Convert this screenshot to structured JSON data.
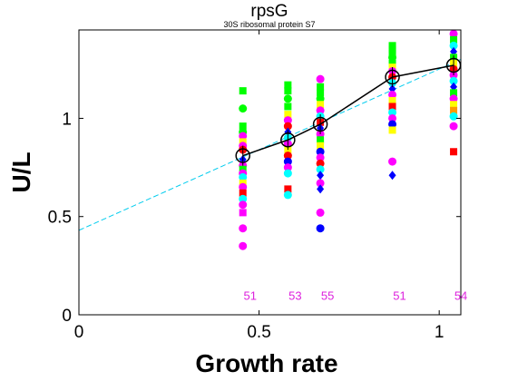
{
  "chart_data": {
    "type": "scatter",
    "title": "rpsG",
    "subtitle": "30S ribosomal protein S7",
    "xlabel": "Growth rate",
    "ylabel": "U/L",
    "xlim": [
      0,
      1.06
    ],
    "ylim": [
      0,
      1.45
    ],
    "xticks": [
      0,
      0.5,
      1
    ],
    "xtick_labels": [
      "0",
      "0.5",
      "1"
    ],
    "yticks": [
      0,
      0.5,
      1
    ],
    "ytick_labels": [
      "0",
      "0.5",
      "1"
    ],
    "grid": false,
    "counts": {
      "x": [
        0.455,
        0.58,
        0.67,
        0.87,
        1.04
      ],
      "labels": [
        "51",
        "53",
        "55",
        "51",
        "54"
      ],
      "y": 0.1,
      "color": "#dd22dd"
    },
    "mean_line": {
      "color": "#000000",
      "x": [
        0.455,
        0.58,
        0.67,
        0.87,
        1.04
      ],
      "y": [
        0.81,
        0.89,
        0.97,
        1.21,
        1.27
      ]
    },
    "fit_line": {
      "color": "#00ccee",
      "style": "dashed",
      "x": [
        0,
        1.06
      ],
      "y": [
        0.43,
        1.3
      ]
    },
    "points": [
      {
        "x": 0.455,
        "y": 1.14,
        "c": "#00ff00",
        "m": "s"
      },
      {
        "x": 0.455,
        "y": 1.05,
        "c": "#00ff00",
        "m": "o"
      },
      {
        "x": 0.455,
        "y": 0.96,
        "c": "#00ff00",
        "m": "s"
      },
      {
        "x": 0.455,
        "y": 0.93,
        "c": "#00ff00",
        "m": "o"
      },
      {
        "x": 0.455,
        "y": 0.91,
        "c": "#ff00ff",
        "m": "o"
      },
      {
        "x": 0.455,
        "y": 0.88,
        "c": "#ffff00",
        "m": "s"
      },
      {
        "x": 0.455,
        "y": 0.86,
        "c": "#ff00ff",
        "m": "o"
      },
      {
        "x": 0.455,
        "y": 0.84,
        "c": "#ff0000",
        "m": "o"
      },
      {
        "x": 0.455,
        "y": 0.79,
        "c": "#0000ff",
        "m": "d"
      },
      {
        "x": 0.455,
        "y": 0.76,
        "c": "#ff00ff",
        "m": "o"
      },
      {
        "x": 0.455,
        "y": 0.74,
        "c": "#00ff00",
        "m": "s"
      },
      {
        "x": 0.455,
        "y": 0.72,
        "c": "#ff00ff",
        "m": "o"
      },
      {
        "x": 0.455,
        "y": 0.7,
        "c": "#00ffff",
        "m": "o"
      },
      {
        "x": 0.455,
        "y": 0.67,
        "c": "#ffff00",
        "m": "s"
      },
      {
        "x": 0.455,
        "y": 0.65,
        "c": "#ff00ff",
        "m": "o"
      },
      {
        "x": 0.455,
        "y": 0.62,
        "c": "#ff0000",
        "m": "s"
      },
      {
        "x": 0.455,
        "y": 0.59,
        "c": "#00ffff",
        "m": "o"
      },
      {
        "x": 0.455,
        "y": 0.56,
        "c": "#ff00ff",
        "m": "o"
      },
      {
        "x": 0.455,
        "y": 0.52,
        "c": "#ff00ff",
        "m": "s"
      },
      {
        "x": 0.455,
        "y": 0.44,
        "c": "#ff00ff",
        "m": "o"
      },
      {
        "x": 0.455,
        "y": 0.35,
        "c": "#ff00ff",
        "m": "o"
      },
      {
        "x": 0.58,
        "y": 1.17,
        "c": "#00ff00",
        "m": "s"
      },
      {
        "x": 0.58,
        "y": 1.14,
        "c": "#00ff00",
        "m": "s"
      },
      {
        "x": 0.58,
        "y": 1.1,
        "c": "#00ff00",
        "m": "o"
      },
      {
        "x": 0.58,
        "y": 1.06,
        "c": "#00ff00",
        "m": "s"
      },
      {
        "x": 0.58,
        "y": 1.02,
        "c": "#ffff00",
        "m": "s"
      },
      {
        "x": 0.58,
        "y": 0.99,
        "c": "#ff00ff",
        "m": "o"
      },
      {
        "x": 0.58,
        "y": 0.96,
        "c": "#ff0000",
        "m": "o"
      },
      {
        "x": 0.58,
        "y": 0.93,
        "c": "#0000ff",
        "m": "d"
      },
      {
        "x": 0.58,
        "y": 0.9,
        "c": "#00ffff",
        "m": "o"
      },
      {
        "x": 0.58,
        "y": 0.87,
        "c": "#ff00ff",
        "m": "o"
      },
      {
        "x": 0.58,
        "y": 0.84,
        "c": "#ffff00",
        "m": "s"
      },
      {
        "x": 0.58,
        "y": 0.81,
        "c": "#ff0000",
        "m": "o"
      },
      {
        "x": 0.58,
        "y": 0.78,
        "c": "#0000ff",
        "m": "o"
      },
      {
        "x": 0.58,
        "y": 0.75,
        "c": "#ff00ff",
        "m": "o"
      },
      {
        "x": 0.58,
        "y": 0.72,
        "c": "#00ffff",
        "m": "o"
      },
      {
        "x": 0.58,
        "y": 0.64,
        "c": "#ff0000",
        "m": "s"
      },
      {
        "x": 0.58,
        "y": 0.61,
        "c": "#00ffff",
        "m": "o"
      },
      {
        "x": 0.67,
        "y": 1.2,
        "c": "#ff00ff",
        "m": "o"
      },
      {
        "x": 0.67,
        "y": 1.16,
        "c": "#00ff00",
        "m": "s"
      },
      {
        "x": 0.67,
        "y": 1.13,
        "c": "#00ff00",
        "m": "s"
      },
      {
        "x": 0.67,
        "y": 1.1,
        "c": "#00ff00",
        "m": "o"
      },
      {
        "x": 0.67,
        "y": 1.07,
        "c": "#ffff00",
        "m": "s"
      },
      {
        "x": 0.67,
        "y": 1.04,
        "c": "#ff00ff",
        "m": "o"
      },
      {
        "x": 0.67,
        "y": 1.01,
        "c": "#00ffff",
        "m": "o"
      },
      {
        "x": 0.67,
        "y": 0.98,
        "c": "#ff0000",
        "m": "s"
      },
      {
        "x": 0.67,
        "y": 0.95,
        "c": "#0000ff",
        "m": "d"
      },
      {
        "x": 0.67,
        "y": 0.92,
        "c": "#ff00ff",
        "m": "o"
      },
      {
        "x": 0.67,
        "y": 0.89,
        "c": "#00ff00",
        "m": "s"
      },
      {
        "x": 0.67,
        "y": 0.86,
        "c": "#ffff00",
        "m": "s"
      },
      {
        "x": 0.67,
        "y": 0.83,
        "c": "#0000ff",
        "m": "o"
      },
      {
        "x": 0.67,
        "y": 0.8,
        "c": "#ff00ff",
        "m": "o"
      },
      {
        "x": 0.67,
        "y": 0.77,
        "c": "#ff0000",
        "m": "o"
      },
      {
        "x": 0.67,
        "y": 0.74,
        "c": "#00ffff",
        "m": "o"
      },
      {
        "x": 0.67,
        "y": 0.71,
        "c": "#0000ff",
        "m": "d"
      },
      {
        "x": 0.67,
        "y": 0.67,
        "c": "#ff00ff",
        "m": "o"
      },
      {
        "x": 0.67,
        "y": 0.64,
        "c": "#0000ff",
        "m": "d"
      },
      {
        "x": 0.67,
        "y": 0.52,
        "c": "#ff00ff",
        "m": "o"
      },
      {
        "x": 0.67,
        "y": 0.44,
        "c": "#0000ff",
        "m": "o"
      },
      {
        "x": 0.87,
        "y": 1.37,
        "c": "#00ff00",
        "m": "s"
      },
      {
        "x": 0.87,
        "y": 1.35,
        "c": "#00ff00",
        "m": "s"
      },
      {
        "x": 0.87,
        "y": 1.33,
        "c": "#00ff00",
        "m": "s"
      },
      {
        "x": 0.87,
        "y": 1.31,
        "c": "#00ff00",
        "m": "o"
      },
      {
        "x": 0.87,
        "y": 1.28,
        "c": "#00ff00",
        "m": "s"
      },
      {
        "x": 0.87,
        "y": 1.26,
        "c": "#ffff00",
        "m": "s"
      },
      {
        "x": 0.87,
        "y": 1.24,
        "c": "#ff00ff",
        "m": "o"
      },
      {
        "x": 0.87,
        "y": 1.21,
        "c": "#ff0000",
        "m": "o"
      },
      {
        "x": 0.87,
        "y": 1.18,
        "c": "#00ffff",
        "m": "o"
      },
      {
        "x": 0.87,
        "y": 1.15,
        "c": "#0000ff",
        "m": "d"
      },
      {
        "x": 0.87,
        "y": 1.12,
        "c": "#ff00ff",
        "m": "o"
      },
      {
        "x": 0.87,
        "y": 1.09,
        "c": "#ffff00",
        "m": "s"
      },
      {
        "x": 0.87,
        "y": 1.06,
        "c": "#ff0000",
        "m": "s"
      },
      {
        "x": 0.87,
        "y": 1.03,
        "c": "#00ffff",
        "m": "o"
      },
      {
        "x": 0.87,
        "y": 1.0,
        "c": "#ff00ff",
        "m": "o"
      },
      {
        "x": 0.87,
        "y": 0.97,
        "c": "#0000ff",
        "m": "o"
      },
      {
        "x": 0.87,
        "y": 0.94,
        "c": "#ffff00",
        "m": "s"
      },
      {
        "x": 0.87,
        "y": 0.78,
        "c": "#ff00ff",
        "m": "o"
      },
      {
        "x": 0.87,
        "y": 0.71,
        "c": "#0000ff",
        "m": "d"
      },
      {
        "x": 1.04,
        "y": 1.43,
        "c": "#ff00ff",
        "m": "o"
      },
      {
        "x": 1.04,
        "y": 1.4,
        "c": "#00ff00",
        "m": "s"
      },
      {
        "x": 1.04,
        "y": 1.37,
        "c": "#00ffff",
        "m": "o"
      },
      {
        "x": 1.04,
        "y": 1.34,
        "c": "#0000ff",
        "m": "d"
      },
      {
        "x": 1.04,
        "y": 1.31,
        "c": "#00ff00",
        "m": "s"
      },
      {
        "x": 1.04,
        "y": 1.28,
        "c": "#ffff00",
        "m": "s"
      },
      {
        "x": 1.04,
        "y": 1.25,
        "c": "#ff0000",
        "m": "o"
      },
      {
        "x": 1.04,
        "y": 1.22,
        "c": "#ff00ff",
        "m": "o"
      },
      {
        "x": 1.04,
        "y": 1.19,
        "c": "#00ffff",
        "m": "o"
      },
      {
        "x": 1.04,
        "y": 1.16,
        "c": "#0000ff",
        "m": "d"
      },
      {
        "x": 1.04,
        "y": 1.13,
        "c": "#00ff00",
        "m": "s"
      },
      {
        "x": 1.04,
        "y": 1.1,
        "c": "#ff00ff",
        "m": "o"
      },
      {
        "x": 1.04,
        "y": 1.07,
        "c": "#ffff00",
        "m": "s"
      },
      {
        "x": 1.04,
        "y": 1.04,
        "c": "#ff9900",
        "m": "s"
      },
      {
        "x": 1.04,
        "y": 1.01,
        "c": "#00ffff",
        "m": "o"
      },
      {
        "x": 1.04,
        "y": 0.96,
        "c": "#ff00ff",
        "m": "o"
      },
      {
        "x": 1.04,
        "y": 0.83,
        "c": "#ff0000",
        "m": "s"
      }
    ]
  }
}
